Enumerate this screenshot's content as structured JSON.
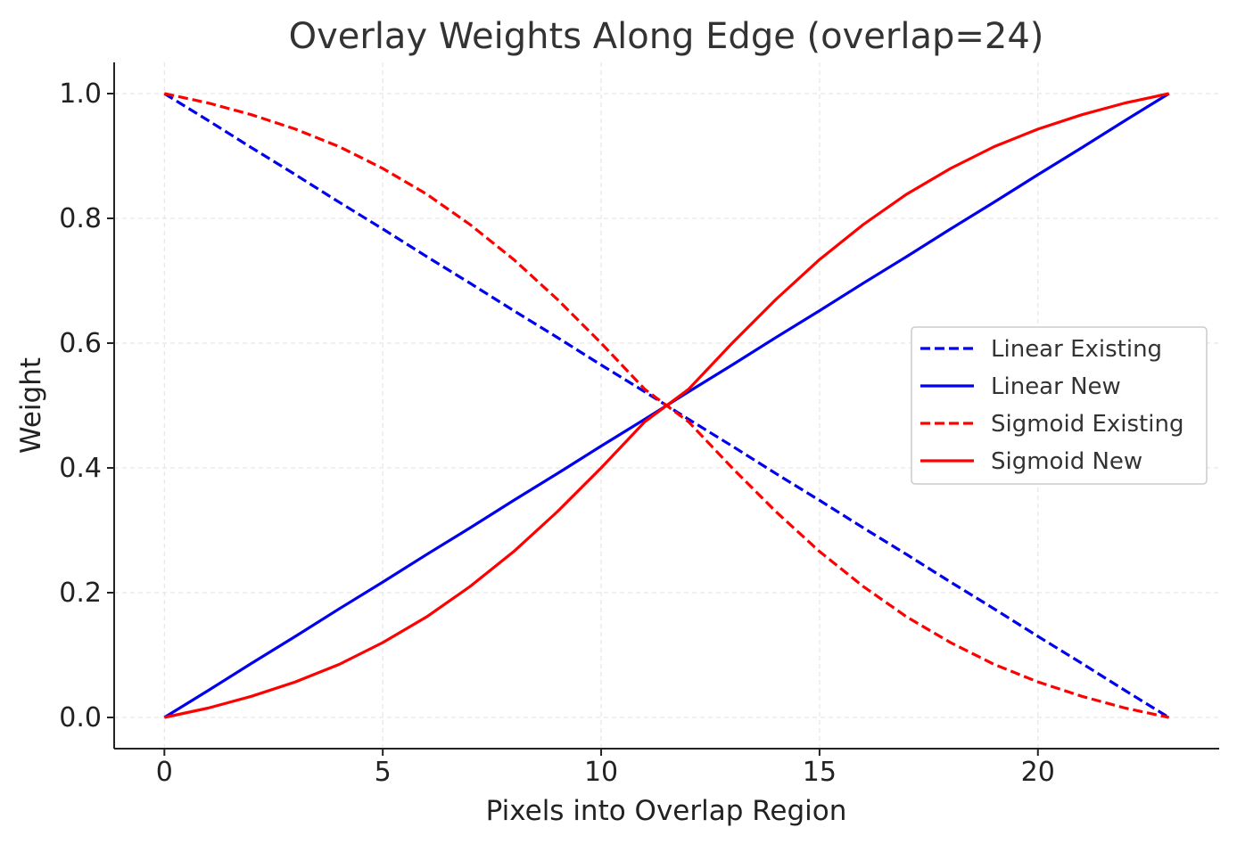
{
  "chart_data": {
    "type": "line",
    "title": "Overlay Weights Along Edge (overlap=24)",
    "xlabel": "Pixels into Overlap Region",
    "ylabel": "Weight",
    "xlim": [
      -1.15,
      24.15
    ],
    "ylim": [
      -0.05,
      1.05
    ],
    "xticks": [
      0,
      5,
      10,
      15,
      20
    ],
    "xtick_labels": [
      "0",
      "5",
      "10",
      "15",
      "20"
    ],
    "yticks": [
      0.0,
      0.2,
      0.4,
      0.6,
      0.8,
      1.0
    ],
    "ytick_labels": [
      "0.0",
      "0.2",
      "0.4",
      "0.6",
      "0.8",
      "1.0"
    ],
    "grid": true,
    "legend_position": "center-right",
    "x": [
      0,
      1,
      2,
      3,
      4,
      5,
      6,
      7,
      8,
      9,
      10,
      11,
      12,
      13,
      14,
      15,
      16,
      17,
      18,
      19,
      20,
      21,
      22,
      23
    ],
    "series": [
      {
        "name": "Linear Existing",
        "color": "#0000ee",
        "style": "dashed",
        "values": [
          1.0,
          0.957,
          0.913,
          0.87,
          0.826,
          0.783,
          0.739,
          0.696,
          0.652,
          0.609,
          0.565,
          0.522,
          0.478,
          0.435,
          0.391,
          0.348,
          0.304,
          0.261,
          0.217,
          0.174,
          0.13,
          0.087,
          0.043,
          0.0
        ]
      },
      {
        "name": "Linear New",
        "color": "#0000ee",
        "style": "solid",
        "values": [
          0.0,
          0.043,
          0.087,
          0.13,
          0.174,
          0.217,
          0.261,
          0.304,
          0.348,
          0.391,
          0.435,
          0.478,
          0.522,
          0.565,
          0.609,
          0.652,
          0.696,
          0.739,
          0.783,
          0.826,
          0.87,
          0.913,
          0.957,
          1.0
        ]
      },
      {
        "name": "Sigmoid Existing",
        "color": "#ff0000",
        "style": "dashed",
        "values": [
          1.0,
          0.985,
          0.966,
          0.943,
          0.915,
          0.88,
          0.839,
          0.79,
          0.734,
          0.67,
          0.6,
          0.526,
          0.474,
          0.4,
          0.33,
          0.266,
          0.21,
          0.161,
          0.12,
          0.085,
          0.057,
          0.034,
          0.015,
          0.0
        ]
      },
      {
        "name": "Sigmoid New",
        "color": "#ff0000",
        "style": "solid",
        "values": [
          0.0,
          0.015,
          0.034,
          0.057,
          0.085,
          0.12,
          0.161,
          0.21,
          0.266,
          0.33,
          0.4,
          0.474,
          0.526,
          0.6,
          0.67,
          0.734,
          0.79,
          0.839,
          0.88,
          0.915,
          0.943,
          0.966,
          0.985,
          1.0
        ]
      }
    ]
  }
}
